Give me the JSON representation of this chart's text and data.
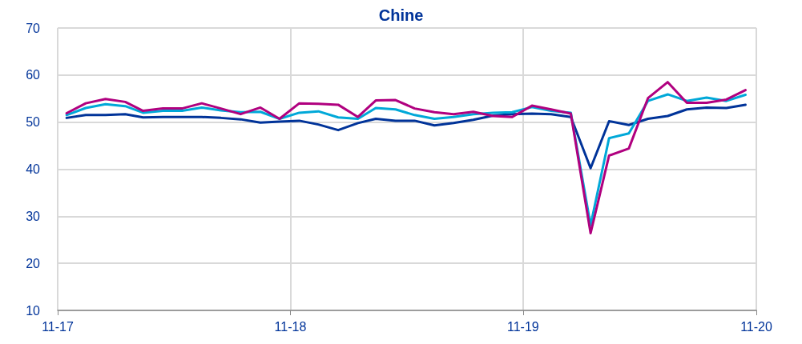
{
  "chart_data": {
    "type": "line",
    "title": "Chine",
    "x": [
      "2017-11-15",
      "2017-12-15",
      "2018-01-15",
      "2018-02-15",
      "2018-03-15",
      "2018-04-15",
      "2018-05-15",
      "2018-06-15",
      "2018-07-15",
      "2018-08-15",
      "2018-09-15",
      "2018-10-15",
      "2018-11-15",
      "2018-12-15",
      "2019-01-15",
      "2019-02-15",
      "2019-03-15",
      "2019-04-15",
      "2019-05-15",
      "2019-06-15",
      "2019-07-15",
      "2019-08-15",
      "2019-09-15",
      "2019-10-15",
      "2019-11-15",
      "2019-12-15",
      "2020-01-15",
      "2020-02-15",
      "2020-03-15",
      "2020-04-15",
      "2020-05-15",
      "2020-06-15",
      "2020-07-15",
      "2020-08-15",
      "2020-09-15",
      "2020-10-15"
    ],
    "series": [
      {
        "color": "#003399",
        "values": [
          50.9,
          51.5,
          51.5,
          51.7,
          51.0,
          51.1,
          51.1,
          51.1,
          50.9,
          50.6,
          49.9,
          50.1,
          50.3,
          49.5,
          48.3,
          49.8,
          50.7,
          50.3,
          50.3,
          49.3,
          49.8,
          50.5,
          51.4,
          51.7,
          51.8,
          51.7,
          51.1,
          40.2,
          50.2,
          49.4,
          50.7,
          51.3,
          52.7,
          53.1,
          53.0,
          53.7
        ]
      },
      {
        "color": "#00a8d8",
        "values": [
          51.5,
          53.0,
          53.8,
          53.4,
          52.0,
          52.4,
          52.4,
          53.1,
          52.5,
          52.1,
          52.2,
          50.7,
          52.0,
          52.3,
          51.0,
          50.7,
          53.0,
          52.7,
          51.5,
          50.7,
          51.1,
          51.7,
          52.0,
          52.1,
          53.2,
          52.4,
          52.0,
          28.1,
          46.6,
          47.6,
          54.5,
          55.9,
          54.5,
          55.2,
          54.5,
          55.8
        ]
      },
      {
        "color": "#b0007f",
        "values": [
          51.9,
          54.0,
          54.9,
          54.3,
          52.4,
          52.9,
          52.9,
          54.0,
          52.9,
          51.7,
          53.1,
          50.7,
          54.0,
          53.9,
          53.7,
          51.1,
          54.6,
          54.7,
          52.9,
          52.1,
          51.7,
          52.2,
          51.3,
          51.1,
          53.5,
          52.7,
          51.8,
          26.4,
          42.9,
          44.4,
          55.1,
          58.5,
          54.1,
          54.1,
          54.8,
          56.8
        ]
      }
    ],
    "xlim": [
      "2017-11",
      "2020-11"
    ],
    "xticks": [
      {
        "value": "2017-11",
        "label": "11-17"
      },
      {
        "value": "2018-11",
        "label": "11-18"
      },
      {
        "value": "2019-11",
        "label": "11-19"
      },
      {
        "value": "2020-11",
        "label": "11-20"
      }
    ],
    "ylim": [
      10,
      70
    ],
    "yticks": [
      10,
      20,
      30,
      40,
      50,
      60,
      70
    ],
    "grid": true,
    "legend": false,
    "marker": "none",
    "line_style": "solid"
  }
}
